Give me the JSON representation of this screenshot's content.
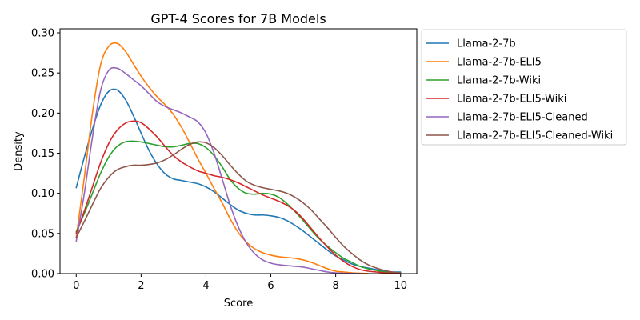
{
  "chart_data": {
    "type": "line",
    "title": "GPT-4 Scores for 7B Models",
    "xlabel": "Score",
    "ylabel": "Density",
    "xlim": [
      -0.5,
      10.5
    ],
    "ylim": [
      0,
      0.305
    ],
    "xticks": [
      0,
      2,
      4,
      6,
      8,
      10
    ],
    "yticks": [
      0.0,
      0.05,
      0.1,
      0.15,
      0.2,
      0.25,
      0.3
    ],
    "xtick_labels": [
      "0",
      "2",
      "4",
      "6",
      "8",
      "10"
    ],
    "ytick_labels": [
      "0.00",
      "0.05",
      "0.10",
      "0.15",
      "0.20",
      "0.25",
      "0.30"
    ],
    "grid": false,
    "legend_position": "outside-right-top",
    "series": [
      {
        "name": "Llama-2-7b",
        "color": "#1f77b4",
        "x": [
          0,
          0.25,
          0.5,
          0.75,
          1,
          1.25,
          1.5,
          1.75,
          2,
          2.25,
          2.5,
          2.75,
          3,
          3.25,
          3.5,
          3.75,
          4,
          4.25,
          4.5,
          4.75,
          5,
          5.25,
          5.5,
          5.75,
          6,
          6.25,
          6.5,
          6.75,
          7,
          7.25,
          7.5,
          7.75,
          8,
          8.25,
          8.5,
          8.75,
          9,
          9.25,
          9.5,
          9.75,
          10
        ],
        "y": [
          0.107,
          0.145,
          0.18,
          0.21,
          0.227,
          0.229,
          0.218,
          0.198,
          0.175,
          0.153,
          0.136,
          0.124,
          0.118,
          0.116,
          0.114,
          0.112,
          0.108,
          0.102,
          0.094,
          0.086,
          0.079,
          0.075,
          0.073,
          0.073,
          0.072,
          0.07,
          0.066,
          0.06,
          0.053,
          0.045,
          0.037,
          0.029,
          0.022,
          0.017,
          0.012,
          0.009,
          0.007,
          0.005,
          0.003,
          0.002,
          0.002
        ]
      },
      {
        "name": "Llama-2-7b-ELI5",
        "color": "#ff7f0e",
        "x": [
          0,
          0.25,
          0.5,
          0.75,
          1,
          1.25,
          1.5,
          1.75,
          2,
          2.25,
          2.5,
          2.75,
          3,
          3.25,
          3.5,
          3.75,
          4,
          4.25,
          4.5,
          4.75,
          5,
          5.25,
          5.5,
          5.75,
          6,
          6.25,
          6.5,
          6.75,
          7,
          7.25,
          7.5,
          7.75,
          8,
          8.25,
          8.5,
          8.75,
          9
        ],
        "y": [
          0.045,
          0.12,
          0.2,
          0.26,
          0.283,
          0.287,
          0.278,
          0.262,
          0.246,
          0.232,
          0.22,
          0.21,
          0.198,
          0.182,
          0.163,
          0.143,
          0.125,
          0.106,
          0.088,
          0.068,
          0.051,
          0.039,
          0.031,
          0.026,
          0.023,
          0.021,
          0.02,
          0.019,
          0.017,
          0.014,
          0.01,
          0.006,
          0.003,
          0.002,
          0.001,
          0.0005,
          0.0002
        ]
      },
      {
        "name": "Llama-2-7b-Wiki",
        "color": "#2ca02c",
        "x": [
          0,
          0.25,
          0.5,
          0.75,
          1,
          1.25,
          1.5,
          1.75,
          2,
          2.25,
          2.5,
          2.75,
          3,
          3.25,
          3.5,
          3.75,
          4,
          4.25,
          4.5,
          4.75,
          5,
          5.25,
          5.5,
          5.75,
          6,
          6.25,
          6.5,
          6.75,
          7,
          7.25,
          7.5,
          7.75,
          8,
          8.25,
          8.5,
          8.75,
          9,
          9.25,
          9.5,
          9.75,
          10
        ],
        "y": [
          0.052,
          0.075,
          0.1,
          0.125,
          0.145,
          0.158,
          0.164,
          0.165,
          0.164,
          0.162,
          0.16,
          0.158,
          0.158,
          0.16,
          0.162,
          0.162,
          0.157,
          0.147,
          0.133,
          0.117,
          0.106,
          0.1,
          0.099,
          0.1,
          0.099,
          0.095,
          0.087,
          0.077,
          0.066,
          0.054,
          0.043,
          0.034,
          0.026,
          0.019,
          0.014,
          0.009,
          0.006,
          0.004,
          0.002,
          0.001,
          0.001
        ]
      },
      {
        "name": "Llama-2-7b-ELI5-Wiki",
        "color": "#d62728",
        "x": [
          0,
          0.25,
          0.5,
          0.75,
          1,
          1.25,
          1.5,
          1.75,
          2,
          2.25,
          2.5,
          2.75,
          3,
          3.25,
          3.5,
          3.75,
          4,
          4.25,
          4.5,
          4.75,
          5,
          5.25,
          5.5,
          5.75,
          6,
          6.25,
          6.5,
          6.75,
          7,
          7.25,
          7.5,
          7.75,
          8,
          8.25,
          8.5,
          8.75,
          9,
          9.25,
          9.5,
          9.75,
          10
        ],
        "y": [
          0.05,
          0.078,
          0.108,
          0.138,
          0.162,
          0.178,
          0.187,
          0.19,
          0.188,
          0.18,
          0.17,
          0.158,
          0.147,
          0.139,
          0.133,
          0.128,
          0.125,
          0.122,
          0.12,
          0.117,
          0.113,
          0.108,
          0.103,
          0.098,
          0.094,
          0.09,
          0.085,
          0.078,
          0.068,
          0.056,
          0.044,
          0.033,
          0.023,
          0.015,
          0.009,
          0.005,
          0.003,
          0.002,
          0.001,
          0.0005,
          0.0002
        ]
      },
      {
        "name": "Llama-2-7b-ELI5-Cleaned",
        "color": "#9467bd",
        "x": [
          0,
          0.25,
          0.5,
          0.75,
          1,
          1.25,
          1.5,
          1.75,
          2,
          2.25,
          2.5,
          2.75,
          3,
          3.25,
          3.5,
          3.75,
          4,
          4.25,
          4.5,
          4.75,
          5,
          5.25,
          5.5,
          5.75,
          6,
          6.25,
          6.5,
          6.75,
          7,
          7.25,
          7.5,
          7.75,
          8,
          8.25,
          8.5,
          8.75
        ],
        "y": [
          0.04,
          0.1,
          0.17,
          0.228,
          0.253,
          0.256,
          0.25,
          0.242,
          0.234,
          0.224,
          0.214,
          0.208,
          0.204,
          0.2,
          0.195,
          0.189,
          0.175,
          0.15,
          0.118,
          0.085,
          0.058,
          0.038,
          0.025,
          0.017,
          0.013,
          0.011,
          0.01,
          0.009,
          0.008,
          0.006,
          0.004,
          0.002,
          0.001,
          0.0005,
          0.0002,
          0.0001
        ]
      },
      {
        "name": "Llama-2-7b-ELI5-Cleaned-Wiki",
        "color": "#8c564b",
        "x": [
          0,
          0.25,
          0.5,
          0.75,
          1,
          1.25,
          1.5,
          1.75,
          2,
          2.25,
          2.5,
          2.75,
          3,
          3.25,
          3.5,
          3.75,
          4,
          4.25,
          4.5,
          4.75,
          5,
          5.25,
          5.5,
          5.75,
          6,
          6.25,
          6.5,
          6.75,
          7,
          7.25,
          7.5,
          7.75,
          8,
          8.25,
          8.5,
          8.75,
          9,
          9.25,
          9.5,
          9.75,
          10
        ],
        "y": [
          0.045,
          0.065,
          0.086,
          0.106,
          0.12,
          0.129,
          0.133,
          0.135,
          0.135,
          0.136,
          0.138,
          0.142,
          0.148,
          0.155,
          0.161,
          0.164,
          0.163,
          0.157,
          0.147,
          0.135,
          0.124,
          0.115,
          0.11,
          0.107,
          0.105,
          0.103,
          0.1,
          0.095,
          0.088,
          0.079,
          0.068,
          0.057,
          0.045,
          0.034,
          0.025,
          0.017,
          0.011,
          0.007,
          0.004,
          0.002,
          0.001
        ]
      }
    ]
  }
}
